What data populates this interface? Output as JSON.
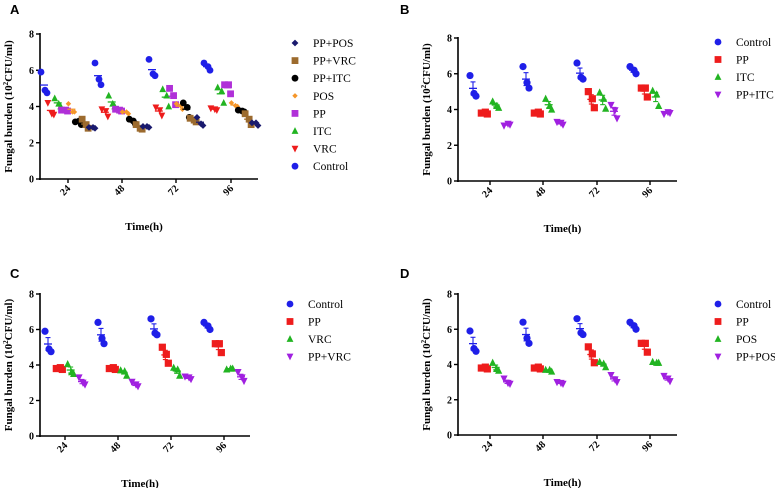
{
  "chart_data": [
    {
      "panel": "A",
      "type": "scatter",
      "xlabel": "Time(h)",
      "ylabel": "Fungal burden (10",
      "ylabel_sup": "2",
      "ylabel_end": "CFU/ml)",
      "categories": [
        "24",
        "48",
        "72",
        "96"
      ],
      "ylim": [
        0,
        8
      ],
      "yticks": [
        "0",
        "2",
        "4",
        "6",
        "8"
      ],
      "error_bars": false,
      "legend_order": [
        "PP+POS",
        "PP+VRC",
        "PP+ITC",
        "POS",
        "PP",
        "ITC",
        "VRC",
        "Control"
      ],
      "series": [
        {
          "name": "Control",
          "color": "#1f1fe8",
          "marker": "circle",
          "points": [
            [
              5.9,
              4.75,
              4.9
            ],
            [
              6.4,
              5.2,
              5.5
            ],
            [
              6.6,
              5.7,
              5.8
            ],
            [
              6.4,
              6.0,
              6.2
            ]
          ]
        },
        {
          "name": "VRC",
          "color": "#ee1c1c",
          "marker": "triangle-down",
          "points": [
            [
              4.2,
              3.55,
              3.6
            ],
            [
              3.85,
              3.45,
              3.75
            ],
            [
              3.95,
              3.5,
              3.8
            ],
            [
              3.9,
              3.8,
              3.85
            ]
          ]
        },
        {
          "name": "ITC",
          "color": "#22b422",
          "marker": "triangle-up",
          "points": [
            [
              4.45,
              4.0,
              4.15
            ],
            [
              4.6,
              4.0,
              4.15
            ],
            [
              4.95,
              4.0,
              4.6
            ],
            [
              5.05,
              4.2,
              4.85
            ]
          ]
        },
        {
          "name": "PP",
          "color": "#b030d8",
          "marker": "square",
          "points": [
            [
              3.8,
              3.75,
              3.8
            ],
            [
              3.85,
              3.75,
              3.8
            ],
            [
              5.0,
              4.1,
              4.6
            ],
            [
              5.2,
              4.7,
              5.2
            ]
          ]
        },
        {
          "name": "POS",
          "color": "#f5962a",
          "marker": "diamond-small",
          "points": [
            [
              4.15,
              3.7,
              3.7
            ],
            [
              3.7,
              3.6,
              3.7
            ],
            [
              4.15,
              3.85,
              4.05
            ],
            [
              4.2,
              4.0,
              4.05
            ]
          ]
        },
        {
          "name": "PP+ITC",
          "color": "#000000",
          "marker": "circle",
          "points": [
            [
              3.15,
              3.0,
              3.2
            ],
            [
              3.3,
              3.05,
              3.2
            ],
            [
              4.2,
              3.4,
              3.95
            ],
            [
              3.8,
              3.7,
              3.75
            ]
          ]
        },
        {
          "name": "PP+VRC",
          "color": "#9c6b2e",
          "marker": "square",
          "points": [
            [
              3.3,
              2.8,
              3.0
            ],
            [
              3.0,
              2.75,
              2.8
            ],
            [
              3.35,
              3.15,
              3.25
            ],
            [
              3.6,
              3.0,
              3.3
            ]
          ]
        },
        {
          "name": "PP+POS",
          "color": "#1a1a6e",
          "marker": "diamond",
          "points": [
            [
              2.85,
              2.8,
              2.85
            ],
            [
              2.9,
              2.85,
              2.9
            ],
            [
              3.4,
              2.95,
              3.05
            ],
            [
              3.1,
              2.95,
              3.1
            ]
          ]
        }
      ]
    },
    {
      "panel": "B",
      "type": "scatter",
      "xlabel": "Time(h)",
      "ylabel": "Fungal burden (10",
      "ylabel_sup": "2",
      "ylabel_end": "CFU/ml)",
      "categories": [
        "24",
        "48",
        "72",
        "96"
      ],
      "ylim": [
        0,
        8
      ],
      "yticks": [
        "0",
        "2",
        "4",
        "6",
        "8"
      ],
      "error_bars": true,
      "legend_order": [
        "Control",
        "PP",
        "ITC",
        "PP+ITC"
      ],
      "series": [
        {
          "name": "Control",
          "color": "#1f1fe8",
          "marker": "circle",
          "points": [
            [
              5.9,
              4.75,
              4.9
            ],
            [
              6.4,
              5.2,
              5.5
            ],
            [
              6.6,
              5.7,
              5.8
            ],
            [
              6.4,
              6.0,
              6.2
            ]
          ]
        },
        {
          "name": "PP",
          "color": "#ee1c1c",
          "marker": "square",
          "points": [
            [
              3.8,
              3.75,
              3.85
            ],
            [
              3.8,
              3.75,
              3.85
            ],
            [
              5.0,
              4.1,
              4.6
            ],
            [
              5.2,
              4.7,
              5.2
            ]
          ]
        },
        {
          "name": "ITC",
          "color": "#22b422",
          "marker": "triangle-up",
          "points": [
            [
              4.45,
              4.1,
              4.2
            ],
            [
              4.6,
              4.0,
              4.2
            ],
            [
              4.95,
              4.05,
              4.6
            ],
            [
              5.05,
              4.2,
              4.85
            ]
          ]
        },
        {
          "name": "PP+ITC",
          "color": "#a020e0",
          "marker": "triangle-down",
          "points": [
            [
              3.1,
              3.15,
              3.2
            ],
            [
              3.3,
              3.15,
              3.25
            ],
            [
              4.25,
              3.5,
              3.95
            ],
            [
              3.75,
              3.8,
              3.85
            ]
          ]
        }
      ]
    },
    {
      "panel": "C",
      "type": "scatter",
      "xlabel": "Time(h)",
      "ylabel": "Fungal burden (10",
      "ylabel_sup": "2",
      "ylabel_end": "CFU/ml)",
      "categories": [
        "24",
        "48",
        "72",
        "96"
      ],
      "ylim": [
        0,
        8
      ],
      "yticks": [
        "0",
        "2",
        "4",
        "6",
        "8"
      ],
      "error_bars": true,
      "legend_order": [
        "Control",
        "PP",
        "VRC",
        "PP+VRC"
      ],
      "series": [
        {
          "name": "Control",
          "color": "#1f1fe8",
          "marker": "circle",
          "points": [
            [
              5.9,
              4.75,
              4.9
            ],
            [
              6.4,
              5.2,
              5.5
            ],
            [
              6.6,
              5.7,
              5.8
            ],
            [
              6.4,
              6.0,
              6.2
            ]
          ]
        },
        {
          "name": "PP",
          "color": "#ee1c1c",
          "marker": "square",
          "points": [
            [
              3.8,
              3.75,
              3.85
            ],
            [
              3.8,
              3.75,
              3.85
            ],
            [
              5.0,
              4.1,
              4.6
            ],
            [
              5.2,
              4.7,
              5.2
            ]
          ]
        },
        {
          "name": "VRC",
          "color": "#22b422",
          "marker": "triangle-up",
          "points": [
            [
              4.05,
              3.5,
              3.6
            ],
            [
              3.7,
              3.4,
              3.65
            ],
            [
              3.85,
              3.4,
              3.75
            ],
            [
              3.75,
              3.8,
              3.8
            ]
          ]
        },
        {
          "name": "PP+VRC",
          "color": "#a020e0",
          "marker": "triangle-down",
          "points": [
            [
              3.3,
              2.9,
              3.0
            ],
            [
              3.05,
              2.8,
              2.9
            ],
            [
              3.35,
              3.2,
              3.3
            ],
            [
              3.6,
              3.1,
              3.3
            ]
          ]
        }
      ]
    },
    {
      "panel": "D",
      "type": "scatter",
      "xlabel": "Time(h)",
      "ylabel": "Fungal burden (10",
      "ylabel_sup": "2",
      "ylabel_end": "CFU/ml)",
      "categories": [
        "24",
        "48",
        "72",
        "96"
      ],
      "ylim": [
        0,
        8
      ],
      "yticks": [
        "0",
        "2",
        "4",
        "6",
        "8"
      ],
      "error_bars": true,
      "legend_order": [
        "Control",
        "PP",
        "POS",
        "PP+POS"
      ],
      "series": [
        {
          "name": "Control",
          "color": "#1f1fe8",
          "marker": "circle",
          "points": [
            [
              5.9,
              4.75,
              4.9
            ],
            [
              6.4,
              5.2,
              5.5
            ],
            [
              6.6,
              5.7,
              5.8
            ],
            [
              6.4,
              6.0,
              6.2
            ]
          ]
        },
        {
          "name": "PP",
          "color": "#ee1c1c",
          "marker": "square",
          "points": [
            [
              3.8,
              3.75,
              3.85
            ],
            [
              3.8,
              3.75,
              3.85
            ],
            [
              5.0,
              4.1,
              4.6
            ],
            [
              5.2,
              4.7,
              5.2
            ]
          ]
        },
        {
          "name": "POS",
          "color": "#22b422",
          "marker": "triangle-up",
          "points": [
            [
              4.1,
              3.65,
              3.75
            ],
            [
              3.7,
              3.6,
              3.7
            ],
            [
              4.15,
              3.85,
              4.05
            ],
            [
              4.15,
              4.1,
              4.1
            ]
          ]
        },
        {
          "name": "PP+POS",
          "color": "#a020e0",
          "marker": "triangle-down",
          "points": [
            [
              3.2,
              2.9,
              2.95
            ],
            [
              3.0,
              2.9,
              2.95
            ],
            [
              3.4,
              3.0,
              3.15
            ],
            [
              3.35,
              3.05,
              3.2
            ]
          ]
        }
      ]
    }
  ]
}
